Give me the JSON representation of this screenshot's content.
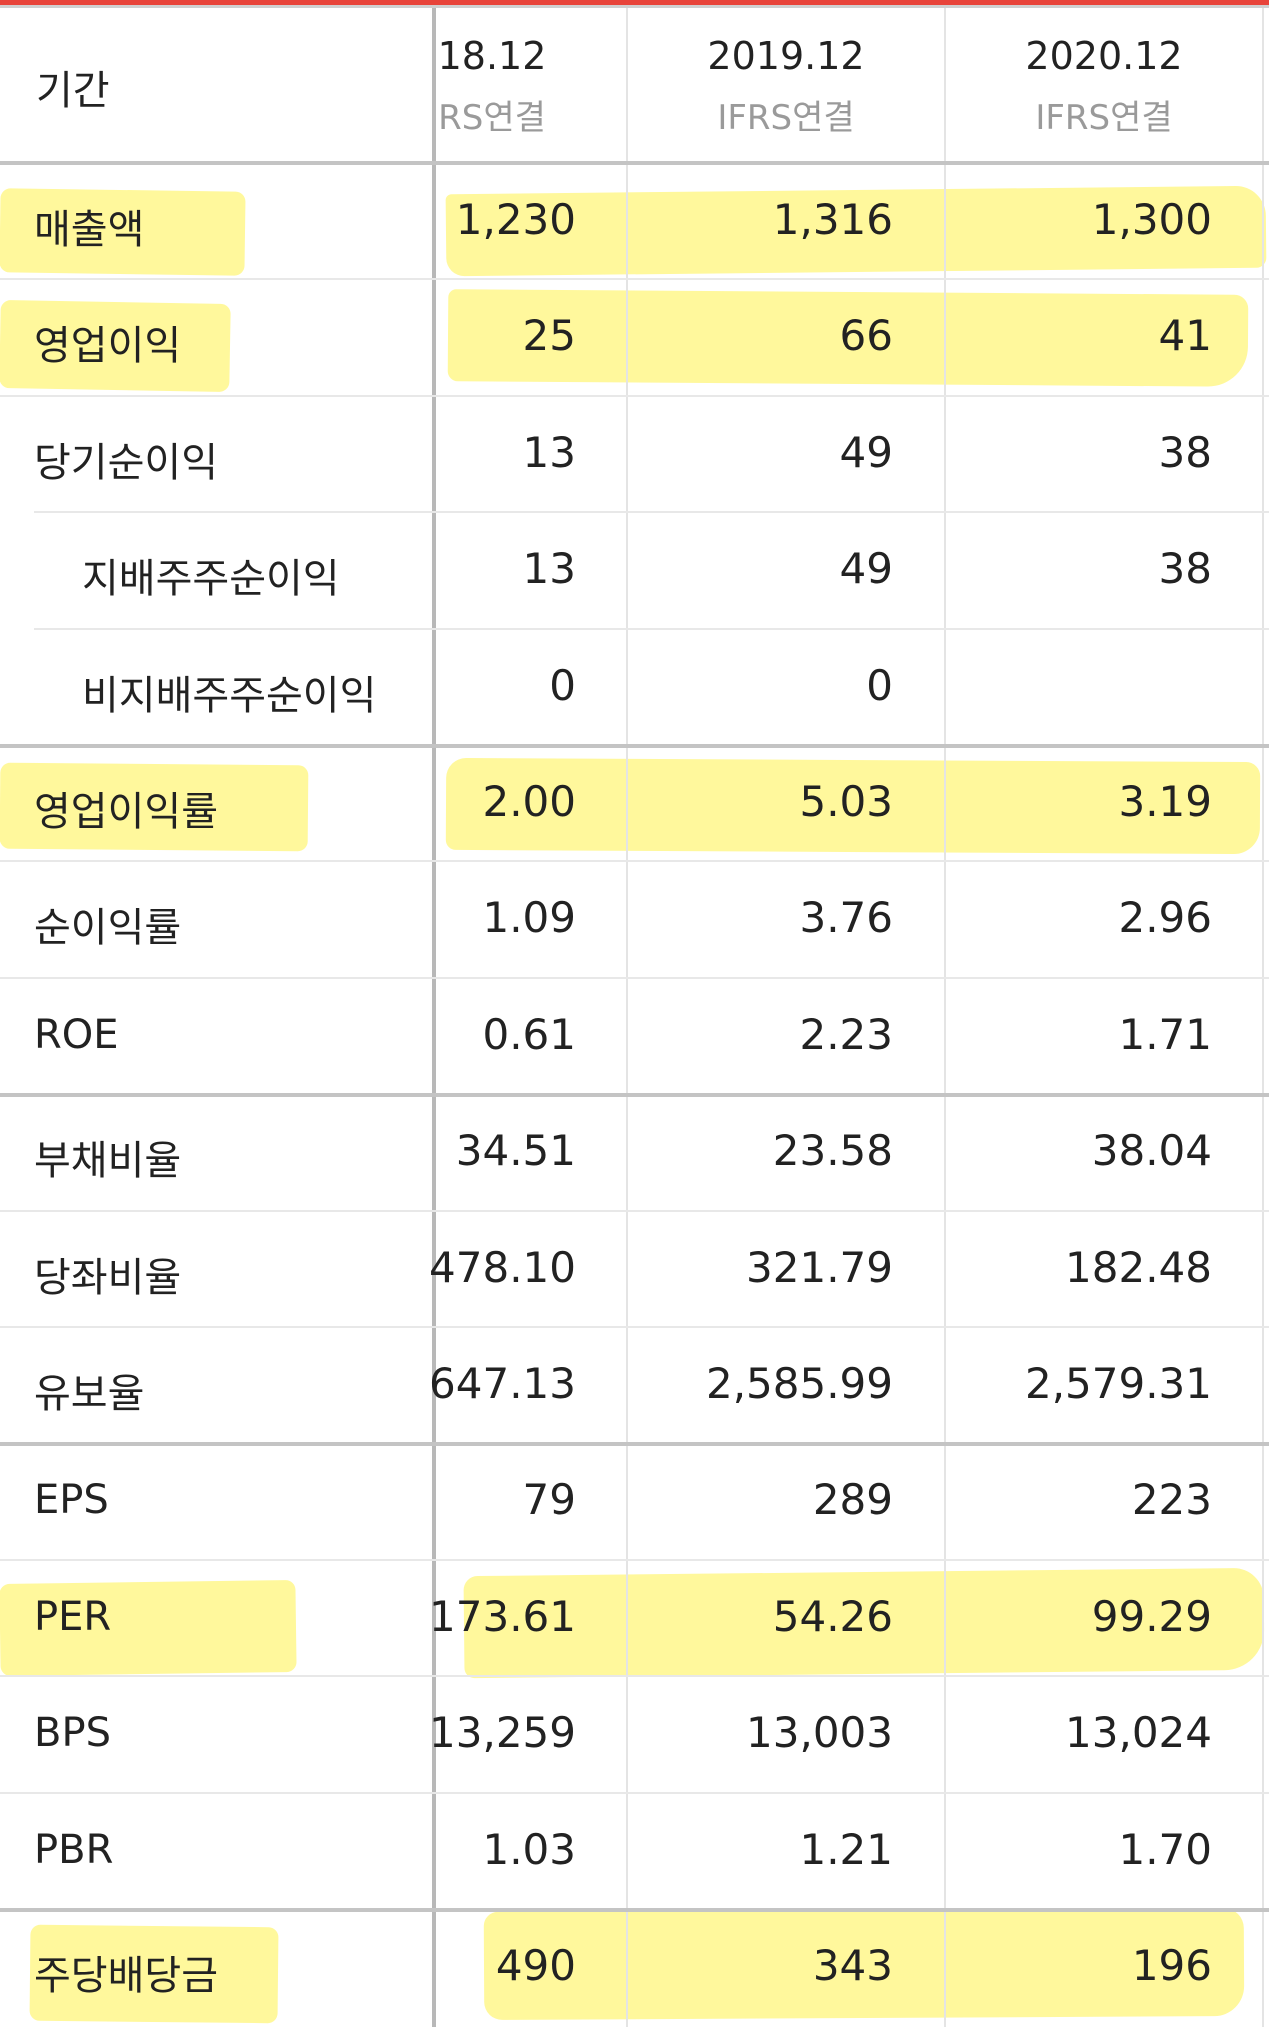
{
  "header": {
    "label": "기간",
    "columns": [
      {
        "year": "18.12",
        "basis": "RS연결"
      },
      {
        "year": "2019.12",
        "basis": "IFRS연결"
      },
      {
        "year": "2020.12",
        "basis": "IFRS연결"
      }
    ]
  },
  "rows": [
    {
      "label": "매출액",
      "values": [
        "1,230",
        "1,316",
        "1,300"
      ],
      "highlighted": true
    },
    {
      "label": "영업이익",
      "values": [
        "25",
        "66",
        "41"
      ],
      "highlighted": true
    },
    {
      "label": "당기순이익",
      "values": [
        "13",
        "49",
        "38"
      ]
    },
    {
      "label": "지배주주순이익",
      "values": [
        "13",
        "49",
        "38"
      ],
      "indent": true
    },
    {
      "label": "비지배주주순이익",
      "values": [
        "0",
        "0",
        ""
      ],
      "indent": true
    },
    {
      "label": "영업이익률",
      "values": [
        "2.00",
        "5.03",
        "3.19"
      ],
      "highlighted": true
    },
    {
      "label": "순이익률",
      "values": [
        "1.09",
        "3.76",
        "2.96"
      ]
    },
    {
      "label": "ROE",
      "values": [
        "0.61",
        "2.23",
        "1.71"
      ]
    },
    {
      "label": "부채비율",
      "values": [
        "34.51",
        "23.58",
        "38.04"
      ]
    },
    {
      "label": "당좌비율",
      "values": [
        "478.10",
        "321.79",
        "182.48"
      ]
    },
    {
      "label": "유보율",
      "values": [
        "647.13",
        "2,585.99",
        "2,579.31"
      ]
    },
    {
      "label": "EPS",
      "values": [
        "79",
        "289",
        "223"
      ]
    },
    {
      "label": "PER",
      "values": [
        "173.61",
        "54.26",
        "99.29"
      ],
      "highlighted": true
    },
    {
      "label": "BPS",
      "values": [
        "13,259",
        "13,003",
        "13,024"
      ]
    },
    {
      "label": "PBR",
      "values": [
        "1.03",
        "1.21",
        "1.70"
      ]
    },
    {
      "label": "주당배당금",
      "values": [
        "490",
        "343",
        "196"
      ],
      "highlighted": true
    }
  ],
  "colors": {
    "highlight": "#fff35f",
    "accent_top": "#e8443a"
  }
}
